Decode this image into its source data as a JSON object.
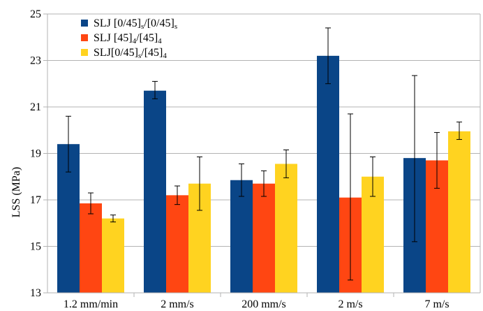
{
  "chart_data": {
    "type": "bar",
    "ylabel": "LSS (MPa)",
    "xlabel": "",
    "ylim": [
      13,
      25
    ],
    "yticks": [
      13,
      15,
      17,
      19,
      21,
      23,
      25
    ],
    "grid": "horizontal",
    "legend_position": "top-left",
    "categories": [
      "1.2 mm/min",
      "2 mm/s",
      "200 mm/s",
      "2 m/s",
      "7 m/s"
    ],
    "series": [
      {
        "name": "SLJ [0/45]s/[0/45]s",
        "legend_parts": [
          {
            "text": "SLJ [0/45]",
            "sub": false
          },
          {
            "text": "s",
            "sub": true
          },
          {
            "text": "/[0/45]",
            "sub": false
          },
          {
            "text": "s",
            "sub": true
          }
        ],
        "color": "#0a4587",
        "values": [
          19.4,
          21.7,
          17.85,
          23.2,
          18.8
        ],
        "error_low": [
          18.2,
          21.35,
          17.15,
          22.0,
          15.2
        ],
        "error_high": [
          20.6,
          22.1,
          18.55,
          24.4,
          22.35
        ]
      },
      {
        "name": "SLJ [45]4/[45]4",
        "legend_parts": [
          {
            "text": "SLJ [45]",
            "sub": false
          },
          {
            "text": "4",
            "sub": true
          },
          {
            "text": "/[45]",
            "sub": false
          },
          {
            "text": "4",
            "sub": true
          }
        ],
        "color": "#ff4612",
        "values": [
          16.85,
          17.2,
          17.7,
          17.1,
          18.7
        ],
        "error_low": [
          16.4,
          16.8,
          17.15,
          13.55,
          17.5
        ],
        "error_high": [
          17.3,
          17.6,
          18.25,
          20.7,
          19.9
        ]
      },
      {
        "name": "SLJ[0/45]s/[45]4",
        "legend_parts": [
          {
            "text": "SLJ[0/45]",
            "sub": false
          },
          {
            "text": "s",
            "sub": true
          },
          {
            "text": "/[45]",
            "sub": false
          },
          {
            "text": "4",
            "sub": true
          }
        ],
        "color": "#ffd320",
        "values": [
          16.2,
          17.7,
          18.55,
          18.0,
          19.95
        ],
        "error_low": [
          16.05,
          16.55,
          17.95,
          17.15,
          19.6
        ],
        "error_high": [
          16.35,
          18.85,
          19.15,
          18.85,
          20.35
        ]
      }
    ]
  }
}
